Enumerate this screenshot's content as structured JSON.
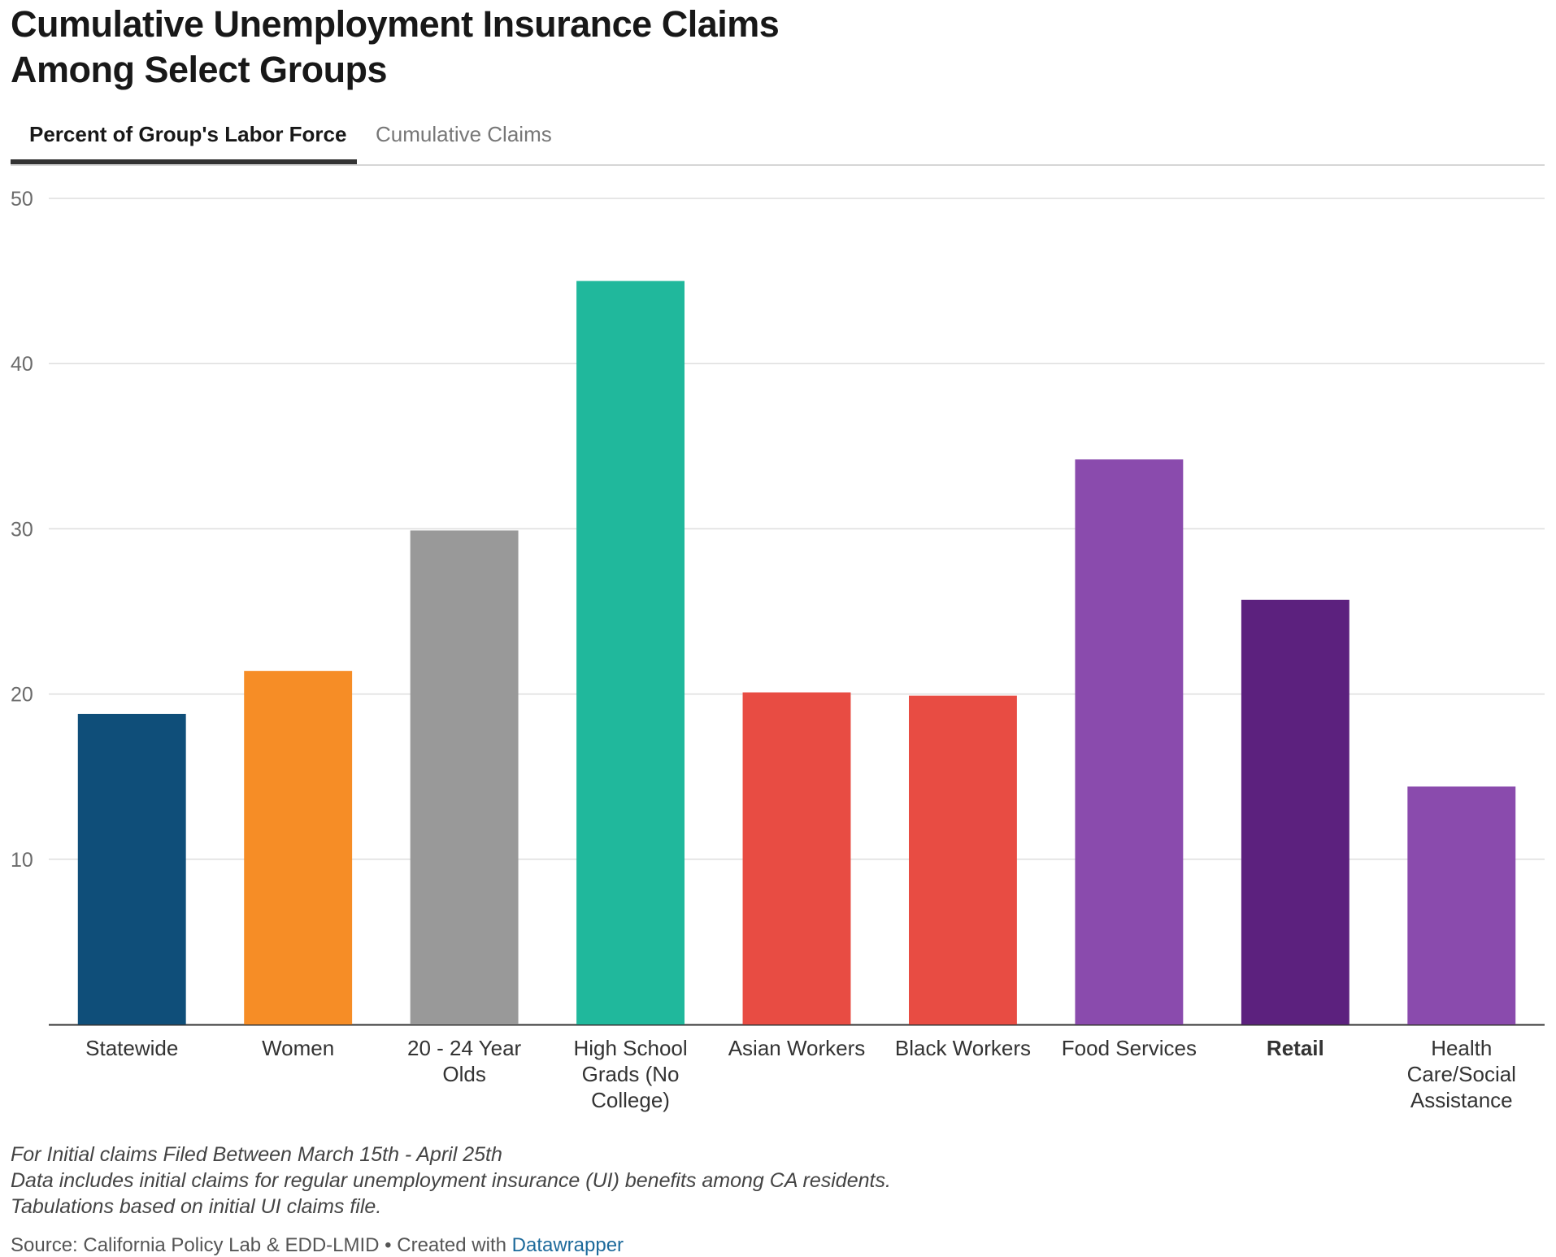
{
  "title_lines": [
    "Cumulative Unemployment Insurance Claims",
    "Among Select Groups"
  ],
  "tabs": [
    {
      "label": "Percent of Group's Labor Force",
      "active": true
    },
    {
      "label": "Cumulative Claims",
      "active": false
    }
  ],
  "chart_data": {
    "type": "bar",
    "categories": [
      "Statewide",
      "Women",
      "20 - 24 Year Olds",
      "High School Grads (No College)",
      "Asian Workers",
      "Black Workers",
      "Food Services",
      "Retail",
      "Health Care/Social Assistance"
    ],
    "category_label_lines": [
      [
        "Statewide"
      ],
      [
        "Women"
      ],
      [
        "20 - 24 Year",
        "Olds"
      ],
      [
        "High School",
        "Grads (No",
        "College)"
      ],
      [
        "Asian Workers"
      ],
      [
        "Black Workers"
      ],
      [
        "Food Services"
      ],
      [
        "Retail"
      ],
      [
        "Health",
        "Care/Social",
        "Assistance"
      ]
    ],
    "values": [
      18.8,
      21.4,
      29.9,
      45.0,
      20.1,
      19.9,
      34.2,
      25.7,
      14.4
    ],
    "colors": [
      "#0f4e79",
      "#f68d26",
      "#999999",
      "#20b89c",
      "#e84c43",
      "#e84c43",
      "#8a4bad",
      "#5c217e",
      "#8a4bad"
    ],
    "bold_categories": [
      "Retail"
    ],
    "yticks": [
      10,
      20,
      30,
      40,
      50
    ],
    "ylim": [
      0,
      50
    ],
    "grid": true,
    "title": "Cumulative Unemployment Insurance Claims Among Select Groups",
    "xlabel": "",
    "ylabel": ""
  },
  "notes": [
    "For Initial claims Filed Between March 15th - April 25th",
    "Data includes initial claims for regular unemployment insurance (UI) benefits among CA residents.",
    "Tabulations based on initial UI claims file."
  ],
  "source": {
    "prefix": "Source: California Policy Lab & EDD-LMID • Created with ",
    "link": "Datawrapper",
    "link_color": "#1d6a9b"
  }
}
